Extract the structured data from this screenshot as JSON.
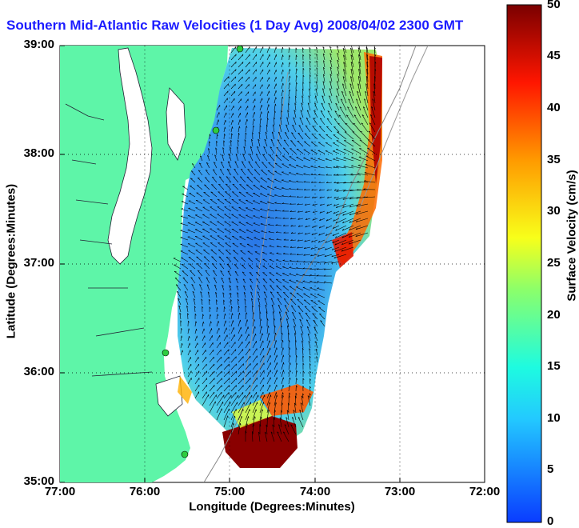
{
  "title": "Southern Mid-Atlantic Raw Velocities (1 Day Avg) 2008/04/02 2300 GMT",
  "axes": {
    "xlabel": "Longitude (Degrees:Minutes)",
    "ylabel": "Latitude (Degrees:Minutes)",
    "xticks": [
      "77:00",
      "76:00",
      "75:00",
      "74:00",
      "73:00",
      "72:00"
    ],
    "yticks": [
      "39:00",
      "38:00",
      "37:00",
      "36:00",
      "35:00"
    ],
    "xlim": [
      -77,
      -72
    ],
    "ylim": [
      35,
      39
    ],
    "grid": "dotted"
  },
  "colorbar": {
    "label": "Surface Velocity (cm/s)",
    "min": 0,
    "max": 50,
    "ticks": [
      "50",
      "45",
      "40",
      "35",
      "30",
      "25",
      "20",
      "15",
      "10",
      "5",
      "0"
    ]
  },
  "colors": {
    "land": "#5ef5a8",
    "ocean_low": "#1e6ee6",
    "ocean_high": "#7a0000",
    "title": "#1c1cff",
    "arrows": "#000000",
    "station": "#2ecc40"
  },
  "stations": [
    "station-1",
    "station-2",
    "station-3",
    "station-4"
  ]
}
